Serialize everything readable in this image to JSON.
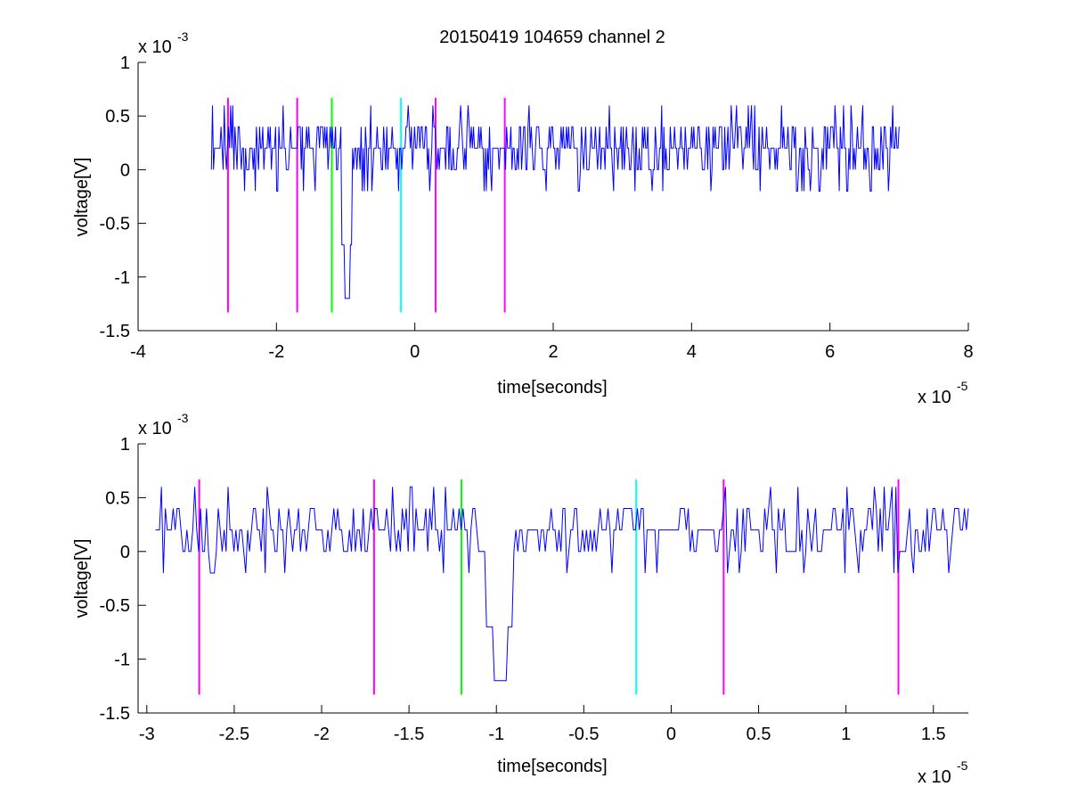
{
  "figure": {
    "title": "20150419 104659 channel 2"
  },
  "chart_data": [
    {
      "type": "line",
      "title": "20150419 104659 channel 2",
      "xlabel": "time[seconds]",
      "ylabel": "voltage[V]",
      "x_exponent_label": "x 10",
      "x_exponent": "-5",
      "y_exponent_label": "x 10",
      "y_exponent": "-3",
      "xlim": [
        -4,
        8
      ],
      "ylim": [
        -1.5,
        1
      ],
      "x_ticks": [
        -4,
        -2,
        0,
        2,
        4,
        6,
        8
      ],
      "x_tick_labels": [
        "-4",
        "-2",
        "0",
        "2",
        "4",
        "6",
        "8"
      ],
      "y_ticks": [
        -1.5,
        -1,
        -0.5,
        0,
        0.5,
        1
      ],
      "y_tick_labels": [
        "-1.5",
        "-1",
        "-0.5",
        "0",
        "0.5",
        "1"
      ],
      "grid": false,
      "signal": {
        "color": "#0000ff",
        "x_start": -2.94,
        "x_end": 7.0,
        "quantized_levels": [
          -0.2,
          0,
          0.2,
          0.4,
          0.6
        ],
        "min_value": -1.2,
        "min_at": -0.98
      },
      "markers": [
        {
          "x": -2.7,
          "color": "#ff00ff"
        },
        {
          "x": -1.7,
          "color": "#ff00ff"
        },
        {
          "x": -1.2,
          "color": "#00ff00"
        },
        {
          "x": -0.2,
          "color": "#00ffff"
        },
        {
          "x": 0.3,
          "color": "#ff00ff"
        },
        {
          "x": 1.3,
          "color": "#ff00ff"
        }
      ],
      "marker_range": [
        -1.33,
        0.67
      ]
    },
    {
      "type": "line",
      "title": "",
      "xlabel": "time[seconds]",
      "ylabel": "voltage[V]",
      "x_exponent_label": "x 10",
      "x_exponent": "-5",
      "y_exponent_label": "x 10",
      "y_exponent": "-3",
      "xlim": [
        -3.05,
        1.7
      ],
      "ylim": [
        -1.5,
        1
      ],
      "x_ticks": [
        -3,
        -2.5,
        -2,
        -1.5,
        -1,
        -0.5,
        0,
        0.5,
        1,
        1.5
      ],
      "x_tick_labels": [
        "-3",
        "-2.5",
        "-2",
        "-1.5",
        "-1",
        "-0.5",
        "0",
        "0.5",
        "1",
        "1.5"
      ],
      "y_ticks": [
        -1.5,
        -1,
        -0.5,
        0,
        0.5,
        1
      ],
      "y_tick_labels": [
        "-1.5",
        "-1",
        "-0.5",
        "0",
        "0.5",
        "1"
      ],
      "grid": false,
      "signal": {
        "color": "#0000ff",
        "x_start": -2.95,
        "x_end": 1.7,
        "quantized_levels": [
          -0.2,
          0,
          0.2,
          0.4,
          0.6
        ],
        "min_value": -1.2,
        "min_at": -0.98
      },
      "markers": [
        {
          "x": -2.7,
          "color": "#ff00ff"
        },
        {
          "x": -1.7,
          "color": "#ff00ff"
        },
        {
          "x": -1.2,
          "color": "#00ff00"
        },
        {
          "x": -0.2,
          "color": "#00ffff"
        },
        {
          "x": 0.3,
          "color": "#ff00ff"
        },
        {
          "x": 1.3,
          "color": "#ff00ff"
        }
      ],
      "marker_range": [
        -1.33,
        0.67
      ]
    }
  ]
}
